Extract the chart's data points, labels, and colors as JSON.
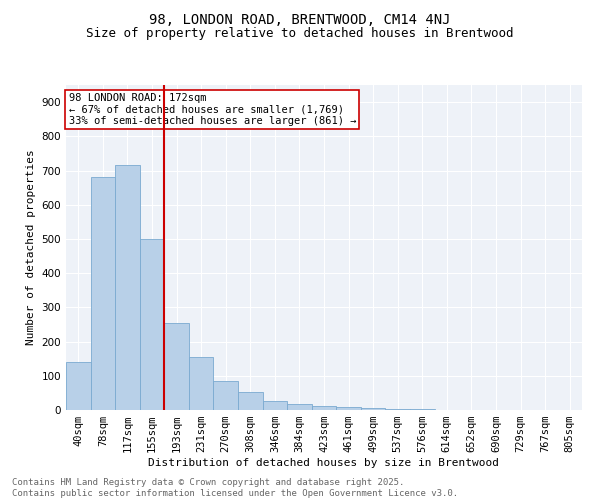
{
  "title": "98, LONDON ROAD, BRENTWOOD, CM14 4NJ",
  "subtitle": "Size of property relative to detached houses in Brentwood",
  "xlabel": "Distribution of detached houses by size in Brentwood",
  "ylabel": "Number of detached properties",
  "bar_values": [
    140,
    680,
    715,
    500,
    255,
    155,
    85,
    52,
    25,
    18,
    12,
    10,
    5,
    3,
    2,
    1,
    1,
    1,
    0,
    0,
    0
  ],
  "bar_labels": [
    "40sqm",
    "78sqm",
    "117sqm",
    "155sqm",
    "193sqm",
    "231sqm",
    "270sqm",
    "308sqm",
    "346sqm",
    "384sqm",
    "423sqm",
    "461sqm",
    "499sqm",
    "537sqm",
    "576sqm",
    "614sqm",
    "652sqm",
    "690sqm",
    "729sqm",
    "767sqm",
    "805sqm"
  ],
  "bar_color": "#b8d0e8",
  "bar_edge_color": "#7aaad0",
  "vline_x": 3.5,
  "vline_color": "#cc0000",
  "annotation_text": "98 LONDON ROAD: 172sqm\n← 67% of detached houses are smaller (1,769)\n33% of semi-detached houses are larger (861) →",
  "annotation_box_color": "#ffffff",
  "annotation_box_edge": "#cc0000",
  "ylim": [
    0,
    950
  ],
  "yticks": [
    0,
    100,
    200,
    300,
    400,
    500,
    600,
    700,
    800,
    900
  ],
  "background_color": "#eef2f8",
  "grid_color": "#ffffff",
  "footer_text": "Contains HM Land Registry data © Crown copyright and database right 2025.\nContains public sector information licensed under the Open Government Licence v3.0.",
  "title_fontsize": 10,
  "subtitle_fontsize": 9,
  "axis_label_fontsize": 8,
  "tick_fontsize": 7.5,
  "footer_fontsize": 6.5,
  "annot_fontsize": 7.5
}
